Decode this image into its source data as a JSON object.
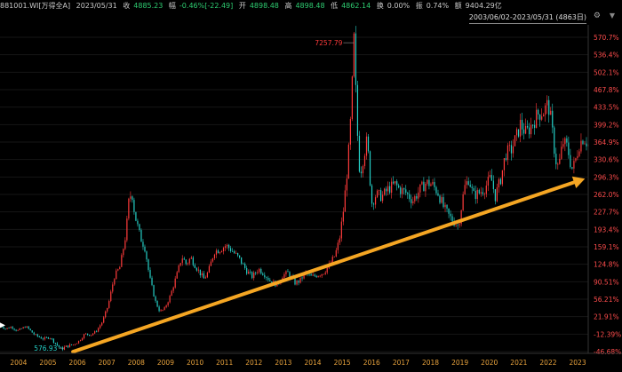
{
  "header": {
    "ticker": "881001.WI[万得全A]",
    "date": "2023/05/31",
    "close_label": "收",
    "close_value": "4885.23",
    "change_label": "幅",
    "change_value": "-0.46%[-22.49]",
    "open_label": "开",
    "open_value": "4898.48",
    "high_label": "高",
    "high_value": "4898.48",
    "low_label": "低",
    "low_value": "4862.14",
    "volchg_label": "换",
    "volchg_value": "0.00%",
    "amp_label": "振",
    "amp_value": "0.74%",
    "amount_label": "额",
    "amount_value": "9404.29亿",
    "range": "2003/06/02-2023/05/31 (4863日)"
  },
  "colors": {
    "up": "#ff3b3b",
    "down": "#25d0c7",
    "axis_right": "#ff4d4d",
    "axis_bottom": "#e6a13c",
    "arrow": "#f5a623"
  },
  "chart_data": {
    "type": "candlestick",
    "x_ticks": [
      "2004",
      "2005",
      "2006",
      "2007",
      "2008",
      "2009",
      "2010",
      "2011",
      "2012",
      "2013",
      "2014",
      "2015",
      "2016",
      "2017",
      "2018",
      "2019",
      "2020",
      "2021",
      "2022",
      "2023"
    ],
    "y_ticks": [
      "570.7%",
      "536.4%",
      "502.1%",
      "467.8%",
      "433.5%",
      "399.2%",
      "364.9%",
      "330.6%",
      "296.3%",
      "262.0%",
      "227.7%",
      "193.4%",
      "159.1%",
      "124.8%",
      "90.51%",
      "56.21%",
      "21.91%",
      "-12.39%",
      "-46.68%"
    ],
    "y_range": [
      -46.68,
      570.7
    ],
    "x_range": [
      2003.42,
      2023.41
    ],
    "annotations": [
      {
        "text": "7257.79",
        "x": 2015.45,
        "y": 560.0
      },
      {
        "text": "576.93",
        "x": 2005.6,
        "y": -40.0
      }
    ],
    "trend_arrow": {
      "start": [
        2005.9,
        -47
      ],
      "end": [
        2023.3,
        293
      ]
    },
    "trace": [
      [
        2003.42,
        5
      ],
      [
        2003.6,
        -2
      ],
      [
        2003.8,
        2
      ],
      [
        2004.0,
        -6
      ],
      [
        2004.3,
        3
      ],
      [
        2004.6,
        -14
      ],
      [
        2004.9,
        -22
      ],
      [
        2005.1,
        -18
      ],
      [
        2005.3,
        -30
      ],
      [
        2005.5,
        -42
      ],
      [
        2005.7,
        -36
      ],
      [
        2005.9,
        -33
      ],
      [
        2006.1,
        -26
      ],
      [
        2006.3,
        -12
      ],
      [
        2006.5,
        -14
      ],
      [
        2006.7,
        -6
      ],
      [
        2006.9,
        12
      ],
      [
        2007.1,
        45
      ],
      [
        2007.3,
        100
      ],
      [
        2007.5,
        120
      ],
      [
        2007.7,
        185
      ],
      [
        2007.8,
        250
      ],
      [
        2007.9,
        268
      ],
      [
        2008.0,
        222
      ],
      [
        2008.2,
        176
      ],
      [
        2008.35,
        156
      ],
      [
        2008.5,
        100
      ],
      [
        2008.7,
        52
      ],
      [
        2008.85,
        32
      ],
      [
        2009.0,
        36
      ],
      [
        2009.2,
        62
      ],
      [
        2009.45,
        108
      ],
      [
        2009.6,
        140
      ],
      [
        2009.75,
        125
      ],
      [
        2009.9,
        138
      ],
      [
        2010.1,
        118
      ],
      [
        2010.35,
        96
      ],
      [
        2010.5,
        110
      ],
      [
        2010.7,
        150
      ],
      [
        2010.9,
        154
      ],
      [
        2011.1,
        162
      ],
      [
        2011.3,
        152
      ],
      [
        2011.55,
        136
      ],
      [
        2011.8,
        112
      ],
      [
        2012.0,
        100
      ],
      [
        2012.2,
        116
      ],
      [
        2012.4,
        106
      ],
      [
        2012.6,
        92
      ],
      [
        2012.85,
        84
      ],
      [
        2013.0,
        102
      ],
      [
        2013.2,
        108
      ],
      [
        2013.45,
        88
      ],
      [
        2013.6,
        92
      ],
      [
        2013.8,
        108
      ],
      [
        2014.0,
        100
      ],
      [
        2014.2,
        104
      ],
      [
        2014.4,
        108
      ],
      [
        2014.6,
        122
      ],
      [
        2014.8,
        142
      ],
      [
        2014.95,
        172
      ],
      [
        2015.1,
        236
      ],
      [
        2015.25,
        330
      ],
      [
        2015.35,
        420
      ],
      [
        2015.45,
        566
      ],
      [
        2015.55,
        400
      ],
      [
        2015.65,
        300
      ],
      [
        2015.8,
        345
      ],
      [
        2015.9,
        370
      ],
      [
        2016.05,
        245
      ],
      [
        2016.2,
        262
      ],
      [
        2016.4,
        258
      ],
      [
        2016.6,
        272
      ],
      [
        2016.85,
        282
      ],
      [
        2017.0,
        272
      ],
      [
        2017.2,
        266
      ],
      [
        2017.45,
        250
      ],
      [
        2017.7,
        272
      ],
      [
        2017.9,
        285
      ],
      [
        2018.1,
        282
      ],
      [
        2018.3,
        266
      ],
      [
        2018.5,
        236
      ],
      [
        2018.7,
        218
      ],
      [
        2018.85,
        208
      ],
      [
        2019.0,
        200
      ],
      [
        2019.2,
        275
      ],
      [
        2019.35,
        294
      ],
      [
        2019.5,
        260
      ],
      [
        2019.7,
        265
      ],
      [
        2019.9,
        275
      ],
      [
        2020.1,
        296
      ],
      [
        2020.25,
        258
      ],
      [
        2020.45,
        296
      ],
      [
        2020.6,
        342
      ],
      [
        2020.8,
        350
      ],
      [
        2021.0,
        380
      ],
      [
        2021.1,
        400
      ],
      [
        2021.3,
        382
      ],
      [
        2021.5,
        400
      ],
      [
        2021.7,
        420
      ],
      [
        2021.9,
        426
      ],
      [
        2022.05,
        440
      ],
      [
        2022.15,
        405
      ],
      [
        2022.3,
        330
      ],
      [
        2022.4,
        315
      ],
      [
        2022.55,
        365
      ],
      [
        2022.7,
        355
      ],
      [
        2022.85,
        312
      ],
      [
        2022.95,
        322
      ],
      [
        2023.1,
        360
      ],
      [
        2023.25,
        375
      ],
      [
        2023.41,
        360
      ]
    ]
  }
}
